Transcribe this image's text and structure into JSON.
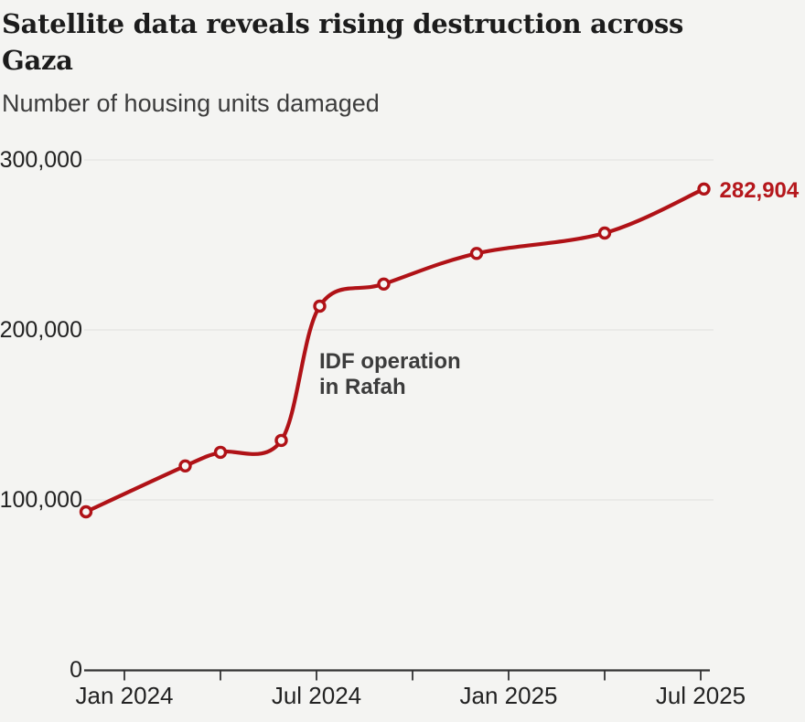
{
  "header": {
    "title": "Satellite data reveals rising destruction across Gaza",
    "subtitle": "Number of housing units damaged"
  },
  "colors": {
    "background": "#f4f4f2",
    "line": "#b01217",
    "marker_fill": "#f7f7f5",
    "grid": "#e6e6e4",
    "axis": "#333333",
    "tick_text": "#222222",
    "title_text": "#1c1c1c",
    "subtitle_text": "#3c3c3c",
    "annotation_text": "#3c3c3c",
    "end_label_text": "#b5171c"
  },
  "chart_data": {
    "type": "line",
    "title": "Satellite data reveals rising destruction across Gaza",
    "subtitle": "Number of housing units damaged",
    "ylabel": "Number of housing units damaged",
    "ylim": [
      0,
      300000
    ],
    "yticks": [
      {
        "value": 0,
        "label": "0"
      },
      {
        "value": 100000,
        "label": "100,000"
      },
      {
        "value": 200000,
        "label": "200,000"
      },
      {
        "value": 300000,
        "label": "300,000"
      }
    ],
    "xticks": [
      {
        "t": 0,
        "label": "Jan 2024"
      },
      {
        "t": 3,
        "label": ""
      },
      {
        "t": 6,
        "label": "Jul 2024"
      },
      {
        "t": 9,
        "label": ""
      },
      {
        "t": 12,
        "label": "Jan 2025"
      },
      {
        "t": 15,
        "label": ""
      },
      {
        "t": 18,
        "label": "Jul 2025"
      }
    ],
    "grid": "horizontal",
    "legend": "none",
    "series": [
      {
        "name": "Housing units damaged",
        "points": [
          {
            "date": "Nov 2023",
            "t": -1.2,
            "value": 93000
          },
          {
            "date": "Feb 2024",
            "t": 1.9,
            "value": 120000
          },
          {
            "date": "Apr 2024",
            "t": 3.0,
            "value": 128000
          },
          {
            "date": "May 2024",
            "t": 4.9,
            "value": 135000
          },
          {
            "date": "Jul 2024",
            "t": 6.1,
            "value": 214000
          },
          {
            "date": "Sep 2024",
            "t": 8.1,
            "value": 227000
          },
          {
            "date": "Dec 2024",
            "t": 11.0,
            "value": 245000
          },
          {
            "date": "Apr 2025",
            "t": 15.0,
            "value": 257000
          },
          {
            "date": "Jul 2025",
            "t": 18.1,
            "value": 282904
          }
        ]
      }
    ],
    "annotation": {
      "lines": [
        "IDF operation",
        "in Rafah"
      ]
    },
    "end_label": "282,904"
  }
}
